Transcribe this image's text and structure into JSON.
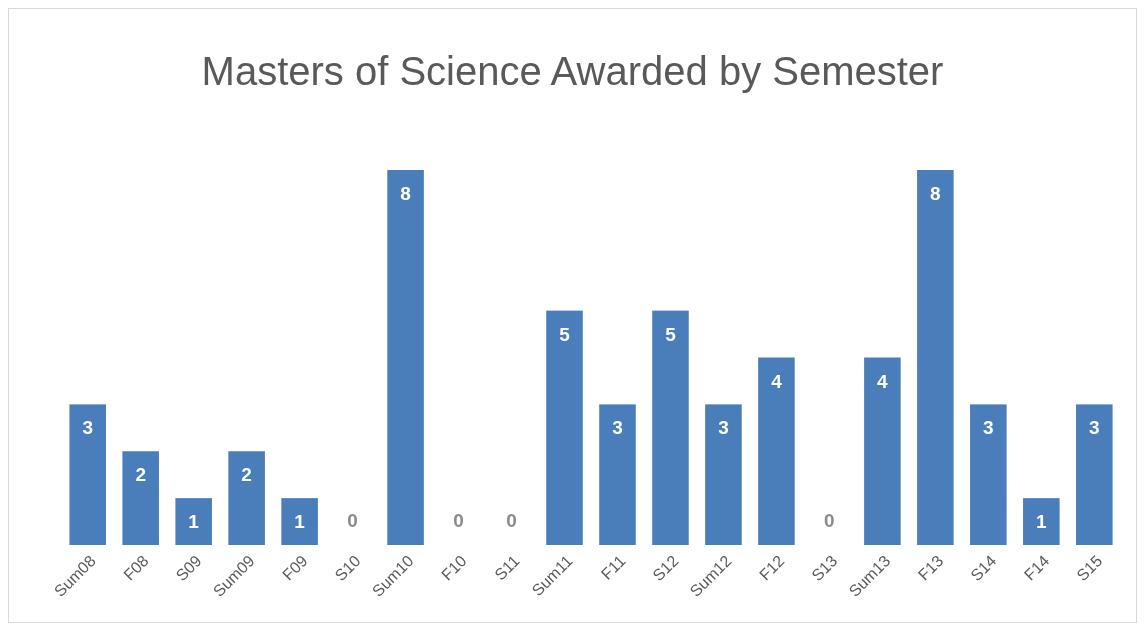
{
  "chart_data": {
    "type": "bar",
    "title": "Masters of Science Awarded by Semester",
    "categories": [
      "Sum08",
      "F08",
      "S09",
      "Sum09",
      "F09",
      "S10",
      "Sum10",
      "F10",
      "S11",
      "Sum11",
      "F11",
      "S12",
      "Sum12",
      "F12",
      "S13",
      "Sum13",
      "F13",
      "S14",
      "F14",
      "S15"
    ],
    "values": [
      3,
      2,
      1,
      2,
      1,
      0,
      8,
      0,
      0,
      5,
      3,
      5,
      3,
      4,
      0,
      4,
      8,
      3,
      1,
      3
    ],
    "color": "#4a7ebb",
    "data_labels": true
  }
}
